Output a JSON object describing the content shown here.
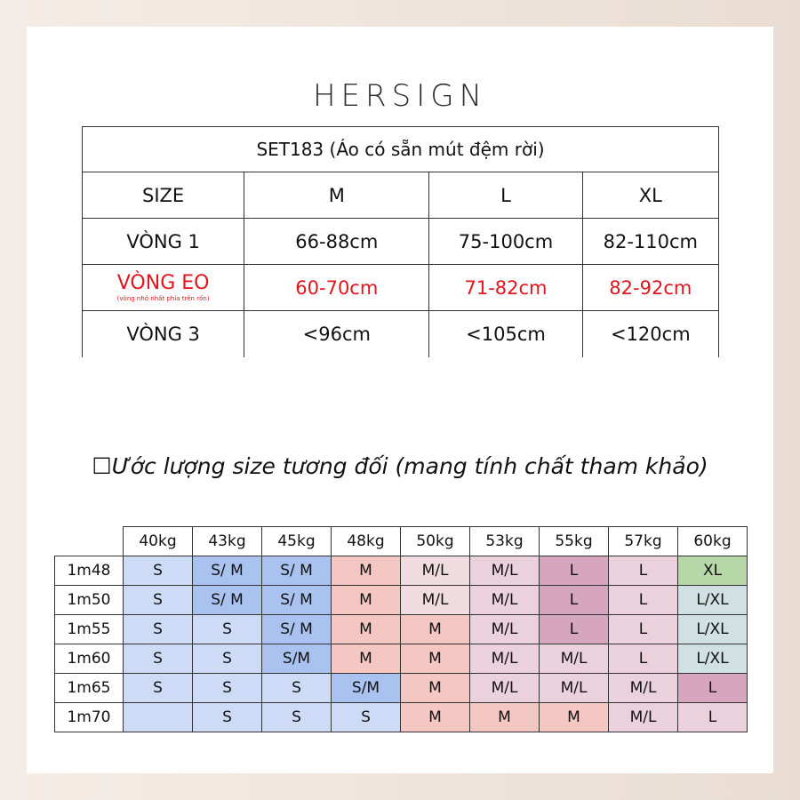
{
  "brand": "HERSIGN",
  "size_table": {
    "title": "SET183 (Áo có sẵn mút đệm rời)",
    "header": [
      "SIZE",
      "M",
      "L",
      "XL"
    ],
    "rows": [
      {
        "label": "VÒNG 1",
        "values": [
          "66-88cm",
          "75-100cm",
          "82-110cm"
        ]
      },
      {
        "label": "VÒNG EO",
        "sublabel": "(vòng nhỏ nhất phía trên rốn)",
        "values": [
          "60-70cm",
          "71-82cm",
          "82-92cm"
        ],
        "highlight": "#e0161c"
      },
      {
        "label": "VÒNG 3",
        "values": [
          "<96cm",
          "<105cm",
          "<120cm"
        ]
      }
    ]
  },
  "estimate_title": "Ước lượng size tương đối (mang tính chất tham khảo)",
  "grid": {
    "columns": [
      "40kg",
      "43kg",
      "45kg",
      "48kg",
      "50kg",
      "53kg",
      "55kg",
      "57kg",
      "60kg"
    ],
    "rows": [
      {
        "height": "1m48",
        "cells": [
          "S",
          "S/ M",
          "S/ M",
          "M",
          "M/L",
          "M/L",
          "L",
          "L",
          "XL"
        ]
      },
      {
        "height": "1m50",
        "cells": [
          "S",
          "S/ M",
          "S/ M",
          "M",
          "M/L",
          "M/L",
          "L",
          "L",
          "L/XL"
        ]
      },
      {
        "height": "1m55",
        "cells": [
          "S",
          "S",
          "S/ M",
          "M",
          "M",
          "M/L",
          "L",
          "L",
          "L/XL"
        ]
      },
      {
        "height": "1m60",
        "cells": [
          "S",
          "S",
          "S/M",
          "M",
          "M",
          "M/L",
          "M/L",
          "L",
          "L/XL"
        ]
      },
      {
        "height": "1m65",
        "cells": [
          "S",
          "S",
          "S",
          "S/M",
          "M",
          "M/L",
          "M/L",
          "M/L",
          "L"
        ]
      },
      {
        "height": "1m70",
        "cells": [
          "",
          "S",
          "S",
          "S",
          "M",
          "M",
          "M",
          "M/L",
          "L"
        ]
      }
    ],
    "colors": [
      [
        "#cddbf6",
        "#a9c2f0",
        "#a9c2f0",
        "#f4c7c3",
        "#f0dce0",
        "#ead1dc",
        "#d5a6bd",
        "#ead1dc",
        "#b6d7a8"
      ],
      [
        "#cddbf6",
        "#a9c2f0",
        "#a9c2f0",
        "#f4c7c3",
        "#f0dce0",
        "#ead1dc",
        "#d5a6bd",
        "#ead1dc",
        "#d0e0e3"
      ],
      [
        "#cddbf6",
        "#cddbf6",
        "#a9c2f0",
        "#f4c7c3",
        "#f4c7c3",
        "#ead1dc",
        "#d5a6bd",
        "#ead1dc",
        "#d0e0e3"
      ],
      [
        "#cddbf6",
        "#cddbf6",
        "#a9c2f0",
        "#f4c7c3",
        "#f4c7c3",
        "#ead1dc",
        "#ead1dc",
        "#ead1dc",
        "#d0e0e3"
      ],
      [
        "#cddbf6",
        "#cddbf6",
        "#cddbf6",
        "#a9c2f0",
        "#f4c7c3",
        "#ead1dc",
        "#ead1dc",
        "#ead1dc",
        "#d5a6bd"
      ],
      [
        "#cddbf6",
        "#cddbf6",
        "#cddbf6",
        "#cddbf6",
        "#f4c7c3",
        "#f4c7c3",
        "#f4c7c3",
        "#ead1dc",
        "#ead1dc"
      ]
    ]
  }
}
